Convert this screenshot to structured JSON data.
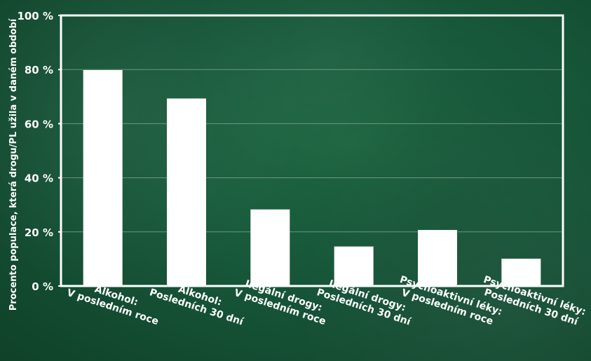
{
  "chart_data": {
    "type": "bar",
    "ylabel": "Procento populace, která drogu/PL užila v daném období",
    "ylim": [
      0,
      100
    ],
    "yticks": [
      "0 %",
      "20 %",
      "40 %",
      "60 %",
      "80 %",
      "100 %"
    ],
    "categories": [
      [
        "Alkohol:",
        "V posledním roce"
      ],
      [
        "Alkohol:",
        "Posledních 30 dní"
      ],
      [
        "Ilegální drogy:",
        "V posledním roce"
      ],
      [
        "Ilegální drogy:",
        "Posledních 30 dní"
      ],
      [
        "Psychoaktivní léky:",
        "V posledním roce"
      ],
      [
        "Psychoaktivní léky:",
        "Posledních 30 dní"
      ]
    ],
    "values": [
      79.8,
      69.3,
      28.3,
      14.6,
      20.7,
      10.1
    ],
    "grid": true,
    "colors": {
      "bar": "#ffffff",
      "grid": "#7fa88f",
      "frame": "#ffffff"
    }
  }
}
